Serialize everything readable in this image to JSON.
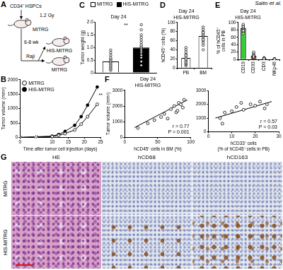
{
  "header": {
    "text": "Saito et al."
  },
  "diagram": {
    "label": "A",
    "donor": "CD34⁺ HSPCs",
    "dose": "1.2 Gy",
    "recipient": "MITRG",
    "interval": "6-8 wk",
    "tumor": "Raji",
    "groups": [
      "HIS-MITRG",
      "MITRG"
    ]
  },
  "chart_data": [
    {
      "label": "B",
      "type": "line",
      "x": [
        0,
        10,
        12,
        14,
        17,
        19,
        21,
        24
      ],
      "series": [
        {
          "name": "MITRG",
          "color": "#000000",
          "marker": "open_circle",
          "values": [
            0,
            30,
            70,
            130,
            260,
            460,
            720,
            1150
          ]
        },
        {
          "name": "HIS-MITRG",
          "color": "#000000",
          "marker": "filled_circle",
          "values": [
            0,
            45,
            100,
            210,
            420,
            720,
            1120,
            1750
          ]
        }
      ],
      "x_label": "Time after tumor cell injection (days)",
      "y_label": "Tumor volume (mm³)",
      "xlim": [
        0,
        25
      ],
      "xticks": [
        0,
        10,
        15,
        20,
        25
      ],
      "ylim": [
        0,
        2000
      ],
      "yticks": [
        0,
        500,
        1000,
        1500,
        2000
      ],
      "grid": false,
      "legend": "top-left",
      "annotations": [
        "**",
        "//"
      ]
    },
    {
      "label": "C",
      "type": "bar",
      "title": "Day 24",
      "categories": [
        "MITRG",
        "HIS-MITRG"
      ],
      "values": [
        0.45,
        1.0
      ],
      "colors": [
        "#ffffff",
        "#000000"
      ],
      "marker": "open_circle",
      "points": [
        [
          0.1,
          0.15,
          0.2,
          0.25,
          0.3,
          0.35,
          0.4,
          0.45,
          0.5,
          0.55,
          0.6,
          0.7,
          0.8,
          0.9
        ],
        [
          0.3,
          0.45,
          0.6,
          0.7,
          0.8,
          0.85,
          0.9,
          0.95,
          1.0,
          1.05,
          1.1,
          1.2,
          1.3,
          1.4,
          1.5,
          1.7,
          1.9
        ]
      ],
      "y_label": "Tumor weight (g)",
      "ylim": [
        0,
        2
      ],
      "yticks": [
        0,
        0.5,
        {
          "value": 1,
          "label": "1.0"
        },
        1.5,
        {
          "value": 2,
          "label": "2.0"
        }
      ],
      "grid": false,
      "legend": "top",
      "tick_labels": "y",
      "annotations": [
        "**"
      ]
    },
    {
      "label": "D",
      "type": "bar",
      "title": "Day 24",
      "subtitle": "HIS-MITRG",
      "categories": [
        "PB",
        "BM"
      ],
      "values": [
        22,
        70
      ],
      "color": "#ffffff",
      "marker": "open_circle",
      "points": [
        [
          5,
          8,
          10,
          12,
          15,
          18,
          20,
          25,
          30,
          40,
          45,
          35,
          28
        ],
        [
          40,
          50,
          55,
          60,
          65,
          70,
          72,
          75,
          80,
          85,
          90,
          62,
          78
        ]
      ],
      "y_label": "hCD45⁺ cells (%)",
      "ylim": [
        0,
        100
      ],
      "yticks": [
        0,
        20,
        40,
        60,
        80,
        100
      ],
      "grid": false
    },
    {
      "label": "E",
      "type": "bar",
      "title": "Day 24",
      "subtitle": "HIS-MITRG",
      "categories": [
        "CD19",
        "CD33",
        "CD3",
        "NKp46"
      ],
      "values": [
        85,
        10,
        2,
        1
      ],
      "colors": [
        "#33cc33",
        "#e8281e",
        "#b0b0b0",
        "#b0b0b0"
      ],
      "marker": "open_circle",
      "points": [
        [
          70,
          75,
          80,
          82,
          85,
          88,
          90,
          92,
          95,
          78,
          86,
          89
        ],
        [
          3,
          5,
          6,
          8,
          10,
          12,
          14,
          18,
          20,
          9,
          11,
          7
        ],
        [
          0,
          1,
          2,
          3,
          4,
          1,
          2,
          5,
          0,
          1,
          3,
          2
        ],
        [
          0,
          0.5,
          1,
          1.5,
          2,
          1,
          0.5,
          2,
          1,
          0,
          1.5,
          1
        ]
      ],
      "y_label": [
        "% of hCD45⁺",
        "cells in PB"
      ],
      "ylim": [
        0,
        100
      ],
      "yticks": [
        0,
        20,
        40,
        60,
        80,
        100
      ],
      "grid": false
    },
    {
      "label": "F",
      "type": "scatter",
      "title": "Day 24",
      "subtitle": "HIS-MITRG",
      "color": "#000000",
      "marker": "open_circle",
      "x": [
        20,
        35,
        45,
        55,
        60,
        65,
        70,
        75,
        78,
        80,
        82,
        85,
        88,
        90
      ],
      "values": [
        600,
        900,
        1100,
        1300,
        1500,
        1200,
        1800,
        2000,
        1600,
        1700,
        2200,
        2100,
        1900,
        2400
      ],
      "fit": {
        "x": [
          15,
          95
        ],
        "y": [
          630,
          2390
        ]
      },
      "x_label": "hCD45⁺ cells in BM (%)",
      "y_label": "Tumor volume (mm³)",
      "xlim": [
        0,
        100
      ],
      "xticks": [
        0,
        50,
        100
      ],
      "ylim": [
        0,
        3000
      ],
      "yticks": [
        0,
        1000,
        2000,
        3000
      ],
      "grid": false,
      "annotations": [
        "r = 0.77",
        "P = 0.001"
      ]
    },
    {
      "type": "scatter",
      "color": "#000000",
      "marker": "open_circle",
      "x": [
        5,
        6,
        7,
        10,
        12,
        14,
        15,
        18,
        20,
        22,
        24,
        25
      ],
      "values": [
        1000,
        600,
        1400,
        1500,
        1800,
        2100,
        1600,
        2000,
        1900,
        2200,
        1700,
        2000
      ],
      "fit": {
        "x": [
          3,
          27
        ],
        "y": [
          1000,
          2200
        ]
      },
      "x_label": [
        "hCD33⁺ cells",
        "(% of hCD45⁺ cells in PB)"
      ],
      "xlim": [
        0,
        30
      ],
      "xticks": [
        0,
        10,
        20,
        30
      ],
      "ylim": [
        0,
        3000
      ],
      "yticks": [
        0,
        1000,
        2000,
        3000
      ],
      "grid": false,
      "annotations": [
        "r = 0.57",
        "P = 0.03"
      ]
    }
  ],
  "histology": {
    "label": "G",
    "columns": [
      "HE",
      "hCD68",
      "hCD163"
    ],
    "rows": [
      "MITRG",
      "HIS-MITRG"
    ]
  }
}
